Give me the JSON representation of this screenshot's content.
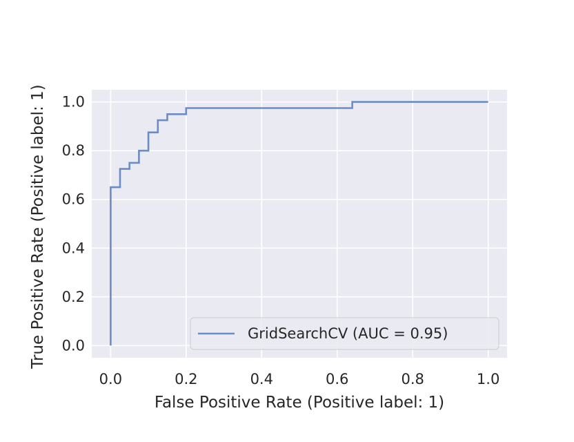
{
  "chart_data": {
    "type": "line",
    "title": "",
    "xlabel": "False Positive Rate (Positive label: 1)",
    "ylabel": "True Positive Rate (Positive label: 1)",
    "xlim": [
      -0.05,
      1.05
    ],
    "ylim": [
      -0.05,
      1.05
    ],
    "xticks": [
      0.0,
      0.2,
      0.4,
      0.6,
      0.8,
      1.0
    ],
    "yticks": [
      0.0,
      0.2,
      0.4,
      0.6,
      0.8,
      1.0
    ],
    "xtick_labels": [
      "0.0",
      "0.2",
      "0.4",
      "0.6",
      "0.8",
      "1.0"
    ],
    "ytick_labels": [
      "0.0",
      "0.2",
      "0.4",
      "0.6",
      "0.8",
      "1.0"
    ],
    "grid": true,
    "legend_position": "lower-right",
    "colors": {
      "background": "#eaeaf2",
      "grid": "#ffffff",
      "line": "#6b8cc4",
      "text": "#262626"
    },
    "series": [
      {
        "name": "GridSearchCV (AUC = 0.95)",
        "x": [
          0.0,
          0.0,
          0.025,
          0.025,
          0.05,
          0.05,
          0.075,
          0.075,
          0.1,
          0.1,
          0.125,
          0.125,
          0.15,
          0.15,
          0.2,
          0.2,
          0.64,
          0.64,
          1.0
        ],
        "y": [
          0.0,
          0.65,
          0.65,
          0.725,
          0.725,
          0.75,
          0.75,
          0.8,
          0.8,
          0.875,
          0.875,
          0.925,
          0.925,
          0.95,
          0.95,
          0.975,
          0.975,
          1.0,
          1.0
        ]
      }
    ]
  }
}
